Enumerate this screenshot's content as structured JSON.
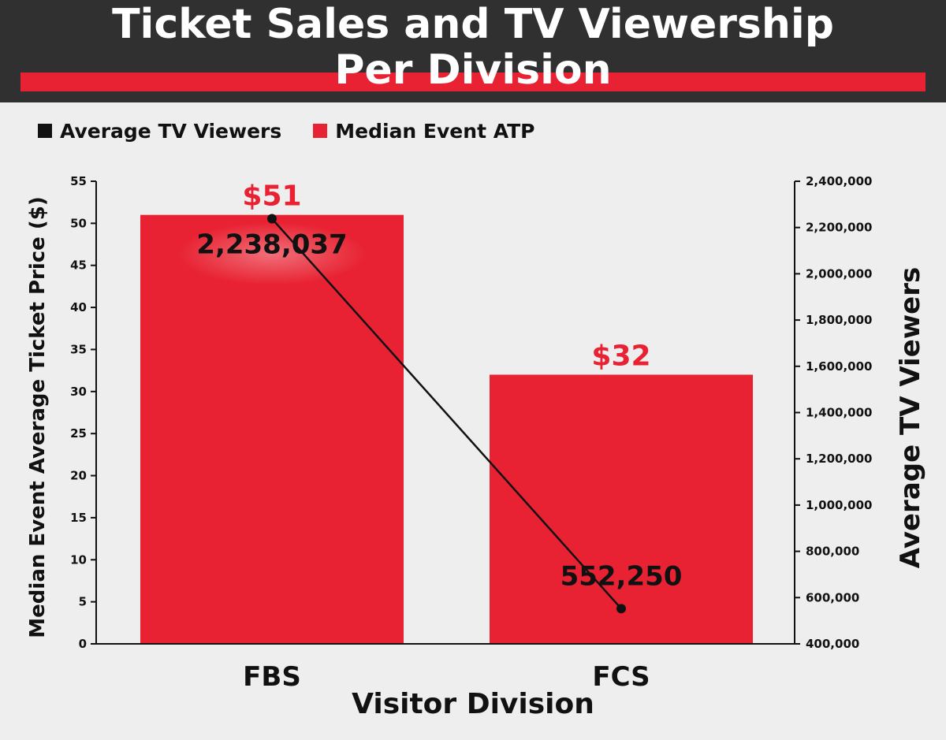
{
  "header": {
    "title_line1": "Ticket Sales and TV Viewership",
    "title_line2": "Per Division"
  },
  "colors": {
    "header_bg": "#303030",
    "accent_red": "#e82232",
    "line_black": "#111111",
    "background": "#eeeeee"
  },
  "legend": {
    "items": [
      {
        "label": "Average TV Viewers",
        "color": "#111111"
      },
      {
        "label": "Median Event ATP",
        "color": "#e82232"
      }
    ]
  },
  "chart_data": {
    "type": "bar",
    "title": "Ticket Sales and TV Viewership Per Division",
    "xlabel": "Visitor Division",
    "ylabel": "Median Event Average Ticket Price ($)",
    "y2label": "Average TV Viewers",
    "categories": [
      "FBS",
      "FCS"
    ],
    "ylim": [
      0,
      55
    ],
    "y2lim": [
      400000,
      2400000
    ],
    "yticks": [
      "0",
      "5",
      "10",
      "15",
      "20",
      "25",
      "30",
      "35",
      "40",
      "45",
      "50",
      "55"
    ],
    "y2ticks": [
      "400,000",
      "600,000",
      "800,000",
      "1,000,000",
      "1,200,000",
      "1,400,000",
      "1,600,000",
      "1,800,000",
      "2,000,000",
      "2,200,000",
      "2,400,000"
    ],
    "series": [
      {
        "name": "Median Event ATP",
        "type": "bar",
        "axis": "left",
        "values": [
          51,
          32
        ],
        "labels": [
          "$51",
          "$32"
        ]
      },
      {
        "name": "Average TV Viewers",
        "type": "line",
        "axis": "right",
        "values": [
          2238037,
          552250
        ],
        "labels": [
          "2,238,037",
          "552,250"
        ]
      }
    ],
    "grid": false,
    "legend_position": "top-left"
  }
}
